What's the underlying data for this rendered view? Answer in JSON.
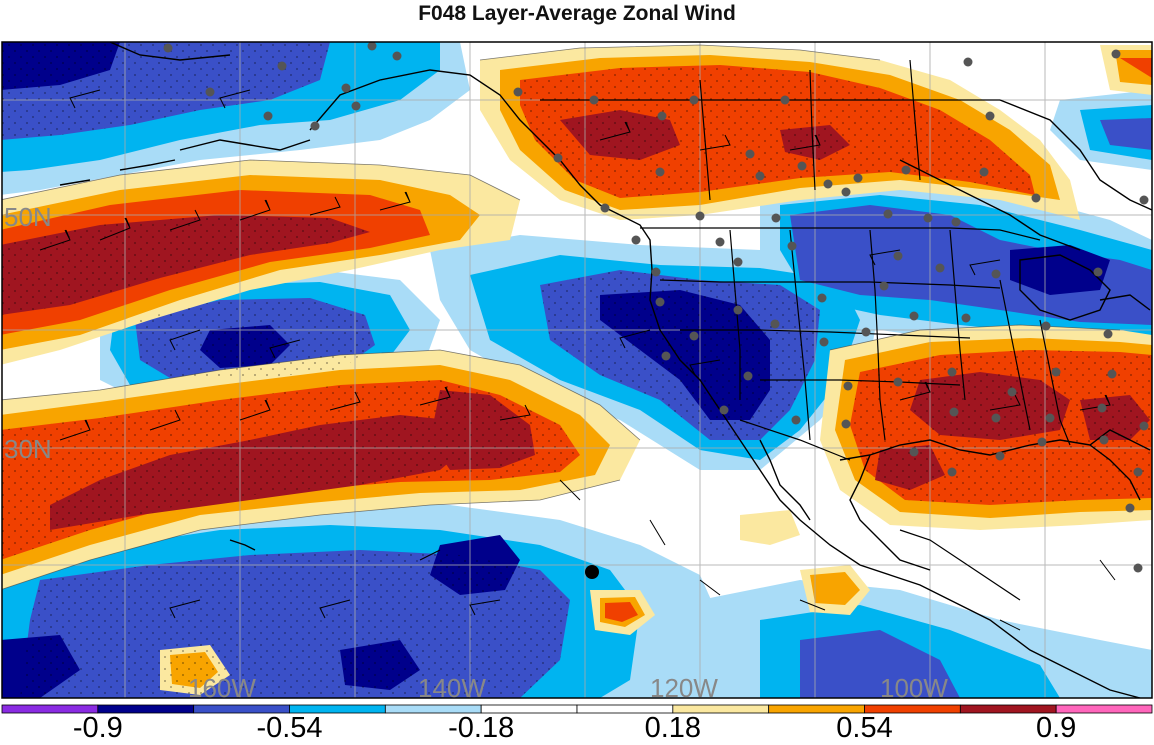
{
  "title": "F048 Layer-Average Zonal Wind",
  "colors": {
    "bin_colors": [
      "#8a2be2",
      "#00008b",
      "#3a50c8",
      "#00b4f0",
      "#a9dcf7",
      "#ffffff",
      "#ffffff",
      "#fbe8a0",
      "#f8a400",
      "#f04000",
      "#a01520",
      "#ff66bb"
    ],
    "land_outline": "#000000",
    "station": "#555555",
    "grid": "#aaaaaa"
  },
  "latitude_labels": [
    "50N",
    "30N"
  ],
  "longitude_labels": [
    "160W",
    "140W",
    "120W",
    "100W"
  ],
  "colorbar": {
    "boundaries": [
      -1.08,
      -0.9,
      -0.72,
      -0.54,
      -0.36,
      -0.18,
      0,
      0.18,
      0.36,
      0.54,
      0.72,
      0.9,
      1.08
    ],
    "labels": [
      "-0.9",
      "-0.54",
      "-0.18",
      "0.18",
      "0.54",
      "0.9"
    ]
  }
}
